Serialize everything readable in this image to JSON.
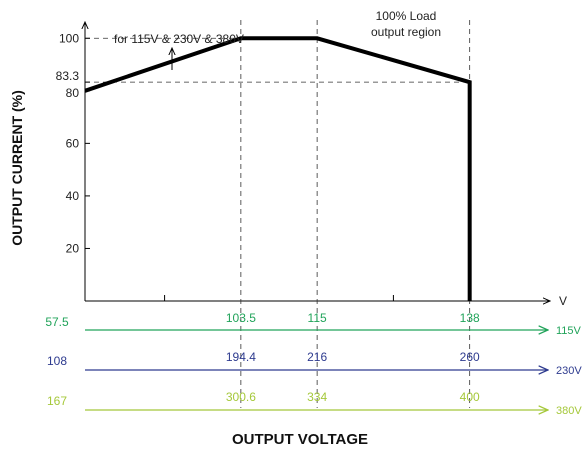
{
  "chart_data": {
    "type": "line",
    "ylabel": "OUTPUT CURRENT (%)",
    "xlabel": "OUTPUT VOLTAGE",
    "x_unit": "V",
    "y_ticks": [
      {
        "value": 20,
        "label": "20"
      },
      {
        "value": 40,
        "label": "40"
      },
      {
        "value": 60,
        "label": "60"
      },
      {
        "value": 80,
        "label": "80"
      },
      {
        "value": 83.3,
        "label": "83.3"
      },
      {
        "value": 100,
        "label": "100"
      }
    ],
    "series": [
      {
        "points": [
          {
            "x": 80,
            "y": 80
          },
          {
            "x": 103.5,
            "y": 100
          },
          {
            "x": 115,
            "y": 100
          },
          {
            "x": 138,
            "y": 83.3
          },
          {
            "x": 138,
            "y": 0
          }
        ]
      }
    ],
    "x_range": [
      80,
      148
    ],
    "y_range": [
      0,
      110
    ],
    "reference_lines_x": [
      103.5,
      115,
      138
    ],
    "reference_lines_y": [
      100,
      83.3
    ],
    "annotations": [
      {
        "id": "input-note",
        "text": "for 115V & 230V & 380V"
      },
      {
        "id": "load-note",
        "lines": [
          "100% Load",
          "output region"
        ]
      }
    ],
    "voltage_scales": [
      {
        "unit": "115V",
        "color": "#21a35a",
        "start": "57.5",
        "ticks": [
          "103.5",
          "115",
          "138"
        ]
      },
      {
        "unit": "230V",
        "color": "#2e3b8f",
        "start": "108",
        "ticks": [
          "194.4",
          "216",
          "260"
        ]
      },
      {
        "unit": "380V",
        "color": "#a5c83a",
        "start": "167",
        "ticks": [
          "300.6",
          "334",
          "400"
        ]
      }
    ]
  }
}
